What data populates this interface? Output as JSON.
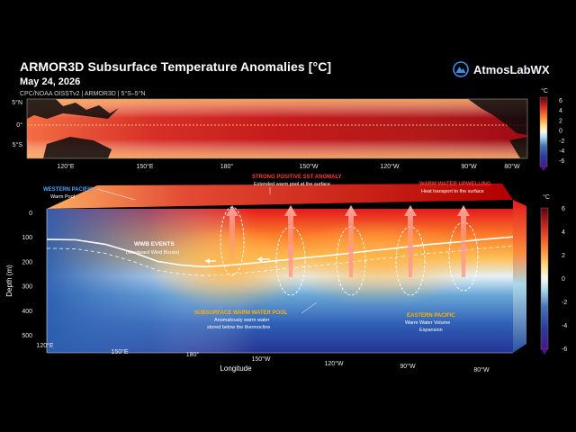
{
  "header": {
    "title": "ARMOR3D Subsurface Temperature Anomalies [°C]",
    "date": "May 24, 2026",
    "source": "CPC/NOAA OISSTv2 | ARMOR3D | 5°S–5°N"
  },
  "brand": {
    "name": "AtmosLabWX",
    "icon": "mountain-logo-icon",
    "color": "#3d8ee8"
  },
  "chart_data": [
    {
      "type": "heatmap",
      "view": "sst-map",
      "y_ticks": [
        "5°N",
        "0°",
        "5°S"
      ],
      "x_ticks": [
        "120°E",
        "150°E",
        "180°",
        "150°W",
        "120°W",
        "90°W",
        "80°W"
      ],
      "colorbar": {
        "label": "°C",
        "ticks": [
          "6",
          "4",
          "2",
          "0",
          "-2",
          "-4",
          "-6"
        ],
        "range": [
          -6,
          6
        ]
      }
    },
    {
      "type": "heatmap",
      "view": "depth-section",
      "ylabel": "Depth (m)",
      "xlabel": "Longitude",
      "y_ticks": [
        "0",
        "100",
        "200",
        "300",
        "400",
        "500"
      ],
      "ylim": [
        500,
        0
      ],
      "x_ticks": [
        "120°E",
        "150°E",
        "180°",
        "150°W",
        "120°W",
        "90°W",
        "80°W"
      ],
      "colorbar": {
        "label": "°C",
        "ticks": [
          "6",
          "4",
          "2",
          "0",
          "-2",
          "-4",
          "-6"
        ],
        "range": [
          -6,
          6
        ]
      },
      "thermocline_depth_m": [
        [
          120,
          110
        ],
        [
          130,
          112
        ],
        [
          140,
          130
        ],
        [
          150,
          165
        ],
        [
          158,
          200
        ],
        [
          166,
          215
        ],
        [
          174,
          222
        ],
        [
          180,
          218
        ],
        [
          190,
          208
        ],
        [
          200,
          196
        ],
        [
          210,
          184
        ],
        [
          220,
          172
        ],
        [
          230,
          158
        ],
        [
          240,
          146
        ],
        [
          250,
          132
        ],
        [
          260,
          122
        ],
        [
          270,
          110
        ],
        [
          280,
          100
        ]
      ],
      "annotations": [
        {
          "title": "WESTERN PACIFIC",
          "text": "Warm Pool",
          "color": "#4ea6ff"
        },
        {
          "title": "STRONG POSITIVE SST ANOMALY",
          "text": "Extended warm pool at the surface",
          "color": "#ff3b30"
        },
        {
          "title": "WARM WATER UPWELLING",
          "text": "Heat transport to the surface",
          "color": "#ff3b30"
        },
        {
          "title": "WWB EVENTS",
          "text": "(Westward Wind Bursts)",
          "color": "#ffffff"
        },
        {
          "title": "SUBSURFACE WARM WATER POOL",
          "text": "Anomalously warm water",
          "text2": "stored below the thermocline",
          "color": "#ffb300"
        },
        {
          "title": "EASTERN PACIFIC",
          "text": "Warm Water Volume",
          "text2": "Expansion",
          "color": "#ffb300"
        }
      ]
    }
  ]
}
